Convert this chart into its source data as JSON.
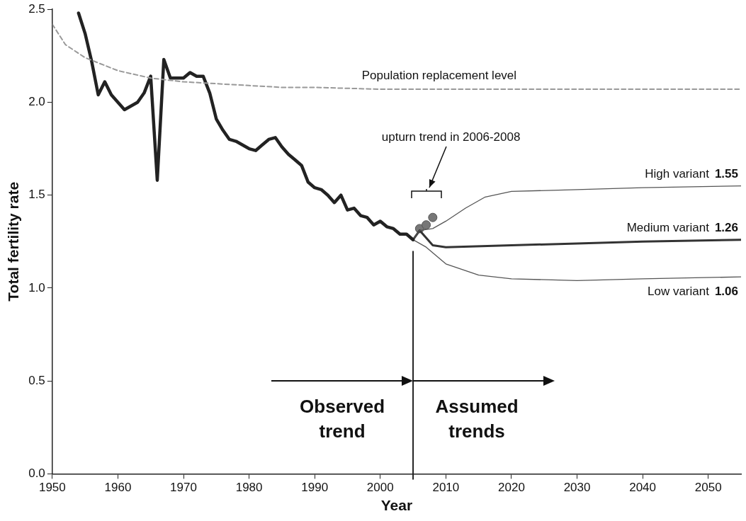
{
  "chart_data": {
    "type": "line",
    "xlabel": "Year",
    "ylabel": "Total fertility rate",
    "xlim": [
      1950,
      2055
    ],
    "ylim": [
      0,
      2.5
    ],
    "xticks": [
      1950,
      1960,
      1970,
      1980,
      1990,
      2000,
      2010,
      2020,
      2030,
      2040,
      2050
    ],
    "yticks": [
      {
        "value": 0,
        "label": "0.0"
      },
      {
        "value": 0.5,
        "label": "0.5"
      },
      {
        "value": 1,
        "label": "1.0"
      },
      {
        "value": 1.5,
        "label": "1.5"
      },
      {
        "value": 2,
        "label": "2.0"
      },
      {
        "value": 2.5,
        "label": "2.5"
      }
    ],
    "grid": false,
    "legend": false,
    "marker": "none",
    "series": [
      {
        "name": "Population replacement level",
        "line_style": "dashed",
        "color": "#999999",
        "x": [
          1950,
          1952,
          1955,
          1960,
          1965,
          1970,
          1975,
          1980,
          1985,
          1990,
          2000,
          2010,
          2055
        ],
        "values": [
          2.42,
          2.31,
          2.24,
          2.17,
          2.13,
          2.11,
          2.1,
          2.09,
          2.08,
          2.08,
          2.07,
          2.07,
          2.07
        ]
      },
      {
        "color": "#222222",
        "x": [
          1954,
          1955,
          1956,
          1957,
          1958,
          1959,
          1960,
          1961,
          1962,
          1963,
          1964,
          1965,
          1966,
          1967,
          1968,
          1969,
          1970,
          1971,
          1972,
          1973,
          1974,
          1975,
          1976,
          1977,
          1978,
          1979,
          1980,
          1981,
          1982,
          1983,
          1984,
          1985,
          1986,
          1987,
          1988,
          1989,
          1990,
          1991,
          1992,
          1993,
          1994,
          1995,
          1996,
          1997,
          1998,
          1999,
          2000,
          2001,
          2002,
          2003,
          2004,
          2005
        ],
        "values": [
          2.48,
          2.37,
          2.22,
          2.04,
          2.11,
          2.04,
          2.0,
          1.96,
          1.98,
          2.0,
          2.05,
          2.14,
          1.58,
          2.23,
          2.13,
          2.13,
          2.13,
          2.16,
          2.14,
          2.14,
          2.05,
          1.91,
          1.85,
          1.8,
          1.79,
          1.77,
          1.75,
          1.74,
          1.77,
          1.8,
          1.81,
          1.76,
          1.72,
          1.69,
          1.66,
          1.57,
          1.54,
          1.53,
          1.5,
          1.46,
          1.5,
          1.42,
          1.43,
          1.39,
          1.38,
          1.34,
          1.36,
          1.33,
          1.32,
          1.29,
          1.29,
          1.26
        ]
      },
      {
        "name": "High variant",
        "color": "#555555",
        "x": [
          2005,
          2006,
          2008,
          2010,
          2013,
          2016,
          2020,
          2030,
          2040,
          2055
        ],
        "values": [
          1.26,
          1.31,
          1.32,
          1.36,
          1.43,
          1.49,
          1.52,
          1.53,
          1.54,
          1.55
        ],
        "value_labels": [
          null,
          null,
          null,
          null,
          null,
          null,
          null,
          null,
          null,
          "1.55"
        ]
      },
      {
        "name": "Medium variant",
        "color": "#333333",
        "x": [
          2005,
          2006,
          2008,
          2010,
          2020,
          2030,
          2040,
          2055
        ],
        "values": [
          1.26,
          1.31,
          1.23,
          1.22,
          1.23,
          1.24,
          1.25,
          1.26
        ],
        "value_labels": [
          null,
          null,
          null,
          null,
          null,
          null,
          null,
          "1.26"
        ]
      },
      {
        "name": "Low variant",
        "color": "#555555",
        "x": [
          2005,
          2007,
          2010,
          2015,
          2020,
          2030,
          2040,
          2055
        ],
        "values": [
          1.26,
          1.22,
          1.13,
          1.07,
          1.05,
          1.04,
          1.05,
          1.06
        ],
        "value_labels": [
          null,
          null,
          null,
          null,
          null,
          null,
          null,
          "1.06"
        ]
      },
      {
        "type": "scatter",
        "marker": "circle",
        "color": "#777777",
        "x": [
          2006,
          2007,
          2008
        ],
        "values": [
          1.32,
          1.34,
          1.38
        ]
      }
    ],
    "ref_lines": [
      {
        "axis": "x",
        "value": 2005,
        "color": "#222222"
      }
    ],
    "annotations": [
      "upturn trend in 2006-2008",
      "Observed trend",
      "Assumed trends"
    ]
  }
}
